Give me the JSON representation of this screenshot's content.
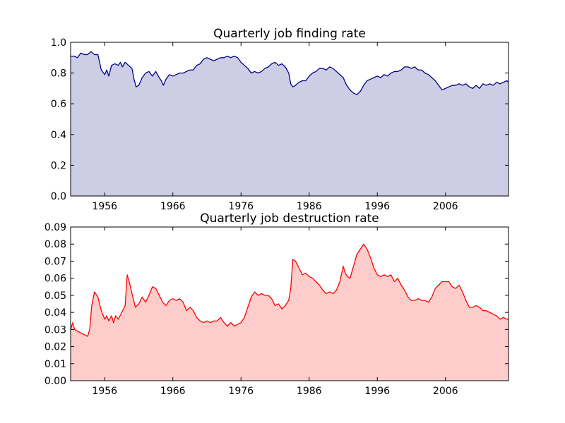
{
  "chart_data": [
    {
      "type": "area",
      "title": "Quarterly job finding rate",
      "xlabel": "",
      "ylabel": "",
      "xlim": [
        1951.0,
        2015.25
      ],
      "ylim": [
        0.0,
        1.0
      ],
      "x_ticks": [
        1956,
        1966,
        1976,
        1986,
        1996,
        2006
      ],
      "y_ticks": [
        "0.0",
        "0.2",
        "0.4",
        "0.6",
        "0.8",
        "1.0"
      ],
      "line_color": "#00008b",
      "fill_color": "#cdcde6",
      "grid": false,
      "legend": "none",
      "points": [
        [
          1951.0,
          0.91
        ],
        [
          1951.5,
          0.91
        ],
        [
          1952.0,
          0.9
        ],
        [
          1952.5,
          0.93
        ],
        [
          1953.0,
          0.92
        ],
        [
          1953.5,
          0.92
        ],
        [
          1954.0,
          0.94
        ],
        [
          1954.5,
          0.92
        ],
        [
          1955.0,
          0.92
        ],
        [
          1955.5,
          0.82
        ],
        [
          1956.0,
          0.79
        ],
        [
          1956.3,
          0.82
        ],
        [
          1956.6,
          0.78
        ],
        [
          1957.0,
          0.85
        ],
        [
          1957.5,
          0.86
        ],
        [
          1958.0,
          0.85
        ],
        [
          1958.3,
          0.87
        ],
        [
          1958.6,
          0.84
        ],
        [
          1959.0,
          0.87
        ],
        [
          1959.5,
          0.85
        ],
        [
          1960.0,
          0.83
        ],
        [
          1960.3,
          0.76
        ],
        [
          1960.6,
          0.71
        ],
        [
          1961.0,
          0.72
        ],
        [
          1961.5,
          0.77
        ],
        [
          1962.0,
          0.8
        ],
        [
          1962.5,
          0.81
        ],
        [
          1963.0,
          0.78
        ],
        [
          1963.5,
          0.81
        ],
        [
          1964.0,
          0.77
        ],
        [
          1964.3,
          0.75
        ],
        [
          1964.6,
          0.72
        ],
        [
          1965.0,
          0.76
        ],
        [
          1965.5,
          0.79
        ],
        [
          1966.0,
          0.78
        ],
        [
          1966.5,
          0.79
        ],
        [
          1967.0,
          0.8
        ],
        [
          1967.5,
          0.8
        ],
        [
          1968.0,
          0.81
        ],
        [
          1968.5,
          0.82
        ],
        [
          1969.0,
          0.82
        ],
        [
          1969.5,
          0.85
        ],
        [
          1970.0,
          0.86
        ],
        [
          1970.5,
          0.89
        ],
        [
          1971.0,
          0.9
        ],
        [
          1971.5,
          0.89
        ],
        [
          1972.0,
          0.88
        ],
        [
          1972.5,
          0.89
        ],
        [
          1973.0,
          0.9
        ],
        [
          1973.5,
          0.9
        ],
        [
          1974.0,
          0.91
        ],
        [
          1974.5,
          0.9
        ],
        [
          1975.0,
          0.91
        ],
        [
          1975.5,
          0.9
        ],
        [
          1976.0,
          0.87
        ],
        [
          1976.5,
          0.85
        ],
        [
          1977.0,
          0.83
        ],
        [
          1977.5,
          0.8
        ],
        [
          1978.0,
          0.81
        ],
        [
          1978.5,
          0.8
        ],
        [
          1979.0,
          0.81
        ],
        [
          1979.5,
          0.83
        ],
        [
          1980.0,
          0.84
        ],
        [
          1980.5,
          0.86
        ],
        [
          1981.0,
          0.87
        ],
        [
          1981.5,
          0.85
        ],
        [
          1982.0,
          0.86
        ],
        [
          1982.5,
          0.84
        ],
        [
          1983.0,
          0.8
        ],
        [
          1983.3,
          0.73
        ],
        [
          1983.6,
          0.71
        ],
        [
          1984.0,
          0.72
        ],
        [
          1984.5,
          0.74
        ],
        [
          1985.0,
          0.75
        ],
        [
          1985.5,
          0.75
        ],
        [
          1986.0,
          0.78
        ],
        [
          1986.5,
          0.8
        ],
        [
          1987.0,
          0.81
        ],
        [
          1987.5,
          0.83
        ],
        [
          1988.0,
          0.83
        ],
        [
          1988.5,
          0.82
        ],
        [
          1989.0,
          0.84
        ],
        [
          1989.5,
          0.83
        ],
        [
          1990.0,
          0.81
        ],
        [
          1990.5,
          0.79
        ],
        [
          1991.0,
          0.77
        ],
        [
          1991.5,
          0.72
        ],
        [
          1992.0,
          0.69
        ],
        [
          1992.5,
          0.67
        ],
        [
          1993.0,
          0.66
        ],
        [
          1993.5,
          0.68
        ],
        [
          1994.0,
          0.72
        ],
        [
          1994.5,
          0.75
        ],
        [
          1995.0,
          0.76
        ],
        [
          1995.5,
          0.77
        ],
        [
          1996.0,
          0.78
        ],
        [
          1996.5,
          0.77
        ],
        [
          1997.0,
          0.79
        ],
        [
          1997.5,
          0.78
        ],
        [
          1998.0,
          0.8
        ],
        [
          1998.5,
          0.81
        ],
        [
          1999.0,
          0.81
        ],
        [
          1999.5,
          0.82
        ],
        [
          2000.0,
          0.84
        ],
        [
          2000.5,
          0.84
        ],
        [
          2001.0,
          0.83
        ],
        [
          2001.5,
          0.84
        ],
        [
          2002.0,
          0.82
        ],
        [
          2002.5,
          0.82
        ],
        [
          2003.0,
          0.8
        ],
        [
          2003.5,
          0.79
        ],
        [
          2004.0,
          0.77
        ],
        [
          2004.5,
          0.75
        ],
        [
          2005.0,
          0.72
        ],
        [
          2005.5,
          0.69
        ],
        [
          2006.0,
          0.7
        ],
        [
          2006.5,
          0.71
        ],
        [
          2007.0,
          0.72
        ],
        [
          2007.5,
          0.72
        ],
        [
          2008.0,
          0.73
        ],
        [
          2008.5,
          0.72
        ],
        [
          2009.0,
          0.73
        ],
        [
          2009.5,
          0.71
        ],
        [
          2010.0,
          0.7
        ],
        [
          2010.5,
          0.72
        ],
        [
          2011.0,
          0.7
        ],
        [
          2011.5,
          0.73
        ],
        [
          2012.0,
          0.72
        ],
        [
          2012.5,
          0.73
        ],
        [
          2013.0,
          0.72
        ],
        [
          2013.5,
          0.74
        ],
        [
          2014.0,
          0.73
        ],
        [
          2014.5,
          0.74
        ],
        [
          2015.0,
          0.75
        ],
        [
          2015.25,
          0.74
        ]
      ]
    },
    {
      "type": "area",
      "title": "Quarterly job destruction rate",
      "xlabel": "",
      "ylabel": "",
      "xlim": [
        1951.0,
        2015.25
      ],
      "ylim": [
        0.0,
        0.09
      ],
      "x_ticks": [
        1956,
        1966,
        1976,
        1986,
        1996,
        2006
      ],
      "y_ticks": [
        "0.00",
        "0.01",
        "0.02",
        "0.03",
        "0.04",
        "0.05",
        "0.06",
        "0.07",
        "0.08",
        "0.09"
      ],
      "line_color": "#ff0000",
      "fill_color": "#ffcccc",
      "grid": false,
      "legend": "none",
      "points": [
        [
          1951.0,
          0.03
        ],
        [
          1951.3,
          0.034
        ],
        [
          1951.6,
          0.03
        ],
        [
          1952.0,
          0.029
        ],
        [
          1952.5,
          0.028
        ],
        [
          1953.0,
          0.027
        ],
        [
          1953.5,
          0.026
        ],
        [
          1953.8,
          0.03
        ],
        [
          1954.1,
          0.044
        ],
        [
          1954.5,
          0.052
        ],
        [
          1955.0,
          0.049
        ],
        [
          1955.5,
          0.041
        ],
        [
          1956.0,
          0.036
        ],
        [
          1956.3,
          0.038
        ],
        [
          1956.6,
          0.035
        ],
        [
          1957.0,
          0.038
        ],
        [
          1957.3,
          0.034
        ],
        [
          1957.6,
          0.038
        ],
        [
          1958.0,
          0.036
        ],
        [
          1958.5,
          0.04
        ],
        [
          1959.0,
          0.044
        ],
        [
          1959.3,
          0.062
        ],
        [
          1959.6,
          0.058
        ],
        [
          1960.0,
          0.051
        ],
        [
          1960.5,
          0.043
        ],
        [
          1961.0,
          0.045
        ],
        [
          1961.5,
          0.049
        ],
        [
          1962.0,
          0.046
        ],
        [
          1962.5,
          0.05
        ],
        [
          1963.0,
          0.055
        ],
        [
          1963.5,
          0.054
        ],
        [
          1964.0,
          0.05
        ],
        [
          1964.5,
          0.046
        ],
        [
          1965.0,
          0.044
        ],
        [
          1965.5,
          0.047
        ],
        [
          1966.0,
          0.048
        ],
        [
          1966.5,
          0.047
        ],
        [
          1967.0,
          0.048
        ],
        [
          1967.5,
          0.046
        ],
        [
          1968.0,
          0.041
        ],
        [
          1968.5,
          0.043
        ],
        [
          1969.0,
          0.041
        ],
        [
          1969.5,
          0.037
        ],
        [
          1970.0,
          0.035
        ],
        [
          1970.5,
          0.034
        ],
        [
          1971.0,
          0.035
        ],
        [
          1971.5,
          0.034
        ],
        [
          1972.0,
          0.035
        ],
        [
          1972.5,
          0.035
        ],
        [
          1973.0,
          0.037
        ],
        [
          1973.5,
          0.034
        ],
        [
          1974.0,
          0.032
        ],
        [
          1974.5,
          0.034
        ],
        [
          1975.0,
          0.032
        ],
        [
          1975.5,
          0.033
        ],
        [
          1976.0,
          0.034
        ],
        [
          1976.5,
          0.037
        ],
        [
          1977.0,
          0.043
        ],
        [
          1977.5,
          0.049
        ],
        [
          1978.0,
          0.052
        ],
        [
          1978.5,
          0.05
        ],
        [
          1979.0,
          0.051
        ],
        [
          1979.5,
          0.05
        ],
        [
          1980.0,
          0.05
        ],
        [
          1980.5,
          0.048
        ],
        [
          1981.0,
          0.044
        ],
        [
          1981.5,
          0.045
        ],
        [
          1982.0,
          0.042
        ],
        [
          1982.5,
          0.044
        ],
        [
          1983.0,
          0.047
        ],
        [
          1983.3,
          0.054
        ],
        [
          1983.6,
          0.071
        ],
        [
          1984.0,
          0.07
        ],
        [
          1984.5,
          0.066
        ],
        [
          1985.0,
          0.062
        ],
        [
          1985.5,
          0.063
        ],
        [
          1986.0,
          0.061
        ],
        [
          1986.5,
          0.06
        ],
        [
          1987.0,
          0.058
        ],
        [
          1987.5,
          0.056
        ],
        [
          1988.0,
          0.053
        ],
        [
          1988.5,
          0.051
        ],
        [
          1989.0,
          0.052
        ],
        [
          1989.5,
          0.051
        ],
        [
          1990.0,
          0.053
        ],
        [
          1990.5,
          0.058
        ],
        [
          1991.0,
          0.067
        ],
        [
          1991.3,
          0.063
        ],
        [
          1991.6,
          0.061
        ],
        [
          1992.0,
          0.06
        ],
        [
          1992.5,
          0.067
        ],
        [
          1993.0,
          0.074
        ],
        [
          1993.5,
          0.077
        ],
        [
          1994.0,
          0.08
        ],
        [
          1994.5,
          0.077
        ],
        [
          1995.0,
          0.072
        ],
        [
          1995.5,
          0.066
        ],
        [
          1996.0,
          0.062
        ],
        [
          1996.5,
          0.061
        ],
        [
          1997.0,
          0.062
        ],
        [
          1997.5,
          0.061
        ],
        [
          1998.0,
          0.062
        ],
        [
          1998.5,
          0.058
        ],
        [
          1999.0,
          0.06
        ],
        [
          1999.5,
          0.056
        ],
        [
          2000.0,
          0.053
        ],
        [
          2000.5,
          0.049
        ],
        [
          2001.0,
          0.047
        ],
        [
          2001.5,
          0.047
        ],
        [
          2002.0,
          0.048
        ],
        [
          2002.5,
          0.047
        ],
        [
          2003.0,
          0.047
        ],
        [
          2003.5,
          0.046
        ],
        [
          2004.0,
          0.049
        ],
        [
          2004.5,
          0.054
        ],
        [
          2005.0,
          0.056
        ],
        [
          2005.5,
          0.058
        ],
        [
          2006.0,
          0.058
        ],
        [
          2006.5,
          0.058
        ],
        [
          2007.0,
          0.055
        ],
        [
          2007.5,
          0.054
        ],
        [
          2008.0,
          0.056
        ],
        [
          2008.5,
          0.052
        ],
        [
          2009.0,
          0.047
        ],
        [
          2009.5,
          0.043
        ],
        [
          2010.0,
          0.043
        ],
        [
          2010.5,
          0.044
        ],
        [
          2011.0,
          0.043
        ],
        [
          2011.5,
          0.041
        ],
        [
          2012.0,
          0.041
        ],
        [
          2012.5,
          0.04
        ],
        [
          2013.0,
          0.039
        ],
        [
          2013.5,
          0.038
        ],
        [
          2014.0,
          0.036
        ],
        [
          2014.5,
          0.037
        ],
        [
          2015.0,
          0.036
        ],
        [
          2015.25,
          0.036
        ]
      ]
    }
  ]
}
